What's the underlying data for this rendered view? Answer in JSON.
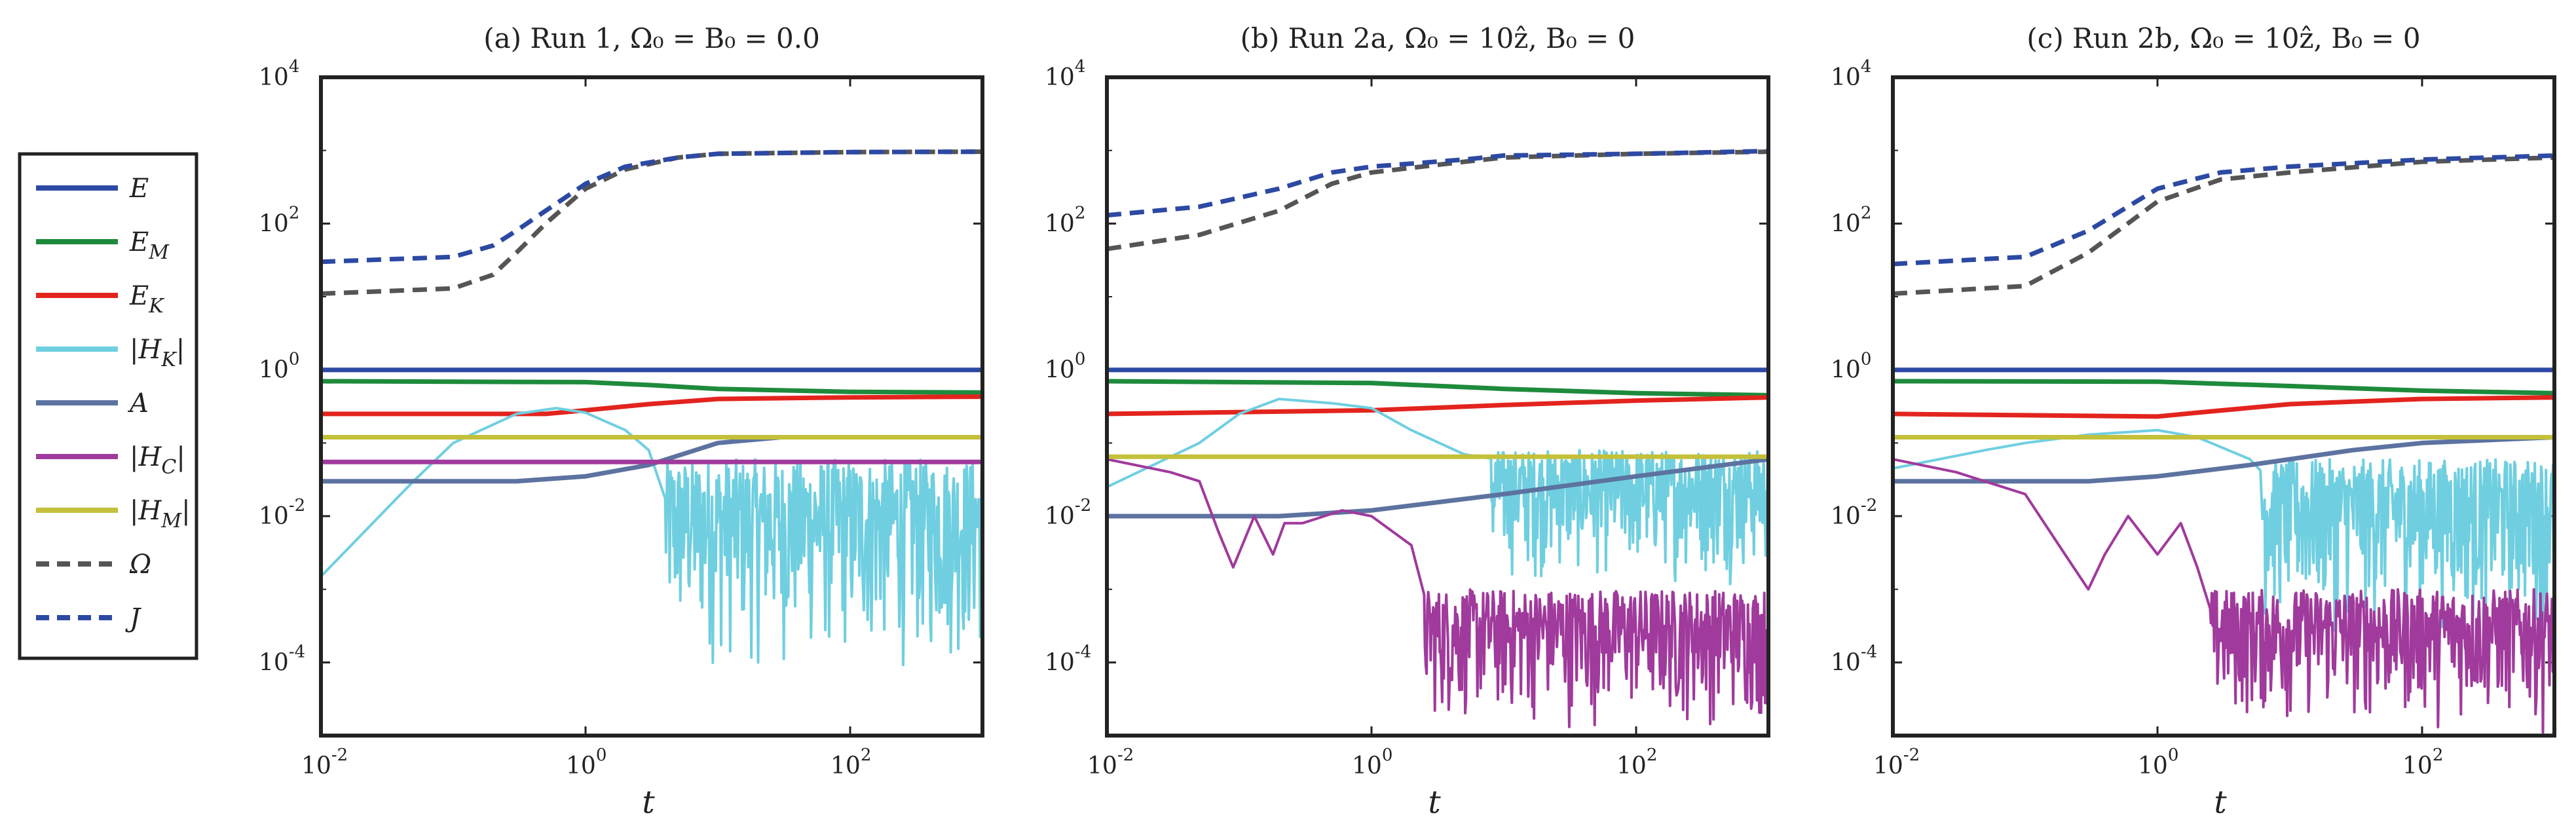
{
  "chart_data": [
    {
      "type": "line",
      "title": "(a) Run 1, Ω₀ = B₀ = 0.0",
      "xlabel": "t",
      "ylabel": "",
      "xscale": "log",
      "yscale": "log",
      "xlim": [
        0.01,
        1000
      ],
      "ylim": [
        1e-05,
        10000
      ],
      "series": [
        {
          "key": "E",
          "points": [
            [
              0.01,
              1.0
            ],
            [
              1000,
              1.0
            ]
          ]
        },
        {
          "key": "EM",
          "points": [
            [
              0.01,
              0.7
            ],
            [
              1,
              0.68
            ],
            [
              3,
              0.62
            ],
            [
              10,
              0.55
            ],
            [
              100,
              0.5
            ],
            [
              1000,
              0.49
            ]
          ]
        },
        {
          "key": "EK",
          "points": [
            [
              0.01,
              0.25
            ],
            [
              0.5,
              0.25
            ],
            [
              1,
              0.28
            ],
            [
              3,
              0.34
            ],
            [
              10,
              0.4
            ],
            [
              100,
              0.42
            ],
            [
              1000,
              0.43
            ]
          ]
        },
        {
          "key": "HK",
          "noisy": true,
          "points": [
            [
              0.01,
              0.0015
            ],
            [
              0.05,
              0.03
            ],
            [
              0.1,
              0.1
            ],
            [
              0.3,
              0.25
            ],
            [
              0.6,
              0.3
            ],
            [
              1,
              0.26
            ],
            [
              2,
              0.15
            ],
            [
              3,
              0.08
            ],
            [
              5,
              0.04
            ],
            [
              8,
              0.015
            ],
            [
              20,
              0.01
            ],
            [
              100,
              0.01
            ],
            [
              1000,
              0.008
            ]
          ],
          "noise": {
            "from": 4,
            "floor": 5e-05,
            "ceil": 0.06
          }
        },
        {
          "key": "A",
          "points": [
            [
              0.01,
              0.03
            ],
            [
              0.3,
              0.03
            ],
            [
              1,
              0.035
            ],
            [
              3,
              0.05
            ],
            [
              10,
              0.1
            ],
            [
              30,
              0.12
            ],
            [
              1000,
              0.12
            ]
          ]
        },
        {
          "key": "HC",
          "points": [
            [
              0.01,
              0.055
            ],
            [
              1000,
              0.055
            ]
          ]
        },
        {
          "key": "HM",
          "points": [
            [
              0.01,
              0.12
            ],
            [
              1000,
              0.12
            ]
          ]
        },
        {
          "key": "Omega",
          "points": [
            [
              0.01,
              11
            ],
            [
              0.1,
              13
            ],
            [
              0.2,
              20
            ],
            [
              0.3,
              40
            ],
            [
              0.5,
              100
            ],
            [
              1,
              300
            ],
            [
              2,
              550
            ],
            [
              5,
              800
            ],
            [
              10,
              900
            ],
            [
              100,
              950
            ],
            [
              1000,
              960
            ]
          ]
        },
        {
          "key": "J",
          "points": [
            [
              0.01,
              30
            ],
            [
              0.1,
              35
            ],
            [
              0.2,
              50
            ],
            [
              0.3,
              80
            ],
            [
              0.5,
              150
            ],
            [
              1,
              350
            ],
            [
              2,
              600
            ],
            [
              5,
              800
            ],
            [
              10,
              900
            ],
            [
              100,
              950
            ],
            [
              1000,
              960
            ]
          ]
        }
      ]
    },
    {
      "type": "line",
      "title": "(b) Run 2a, Ω₀ = 10ẑ, B₀ = 0",
      "xlabel": "t",
      "ylabel": "",
      "xscale": "log",
      "yscale": "log",
      "xlim": [
        0.01,
        1000
      ],
      "ylim": [
        1e-05,
        10000
      ],
      "series": [
        {
          "key": "E",
          "points": [
            [
              0.01,
              1.0
            ],
            [
              1000,
              1.0
            ]
          ]
        },
        {
          "key": "EM",
          "points": [
            [
              0.01,
              0.7
            ],
            [
              1,
              0.66
            ],
            [
              10,
              0.55
            ],
            [
              100,
              0.48
            ],
            [
              1000,
              0.45
            ]
          ]
        },
        {
          "key": "EK",
          "points": [
            [
              0.01,
              0.25
            ],
            [
              1,
              0.28
            ],
            [
              10,
              0.33
            ],
            [
              100,
              0.38
            ],
            [
              1000,
              0.42
            ]
          ]
        },
        {
          "key": "HK",
          "noisy": true,
          "points": [
            [
              0.01,
              0.025
            ],
            [
              0.05,
              0.1
            ],
            [
              0.1,
              0.25
            ],
            [
              0.2,
              0.4
            ],
            [
              0.5,
              0.35
            ],
            [
              1,
              0.3
            ],
            [
              2,
              0.15
            ],
            [
              5,
              0.07
            ],
            [
              10,
              0.02
            ],
            [
              30,
              0.02
            ],
            [
              100,
              0.03
            ],
            [
              1000,
              0.04
            ]
          ],
          "noise": {
            "from": 8,
            "floor": 0.001,
            "ceil": 0.08
          }
        },
        {
          "key": "A",
          "points": [
            [
              0.01,
              0.01
            ],
            [
              0.2,
              0.01
            ],
            [
              1,
              0.012
            ],
            [
              10,
              0.02
            ],
            [
              100,
              0.035
            ],
            [
              1000,
              0.06
            ]
          ]
        },
        {
          "key": "HC",
          "noisy": true,
          "points": [
            [
              0.01,
              0.06
            ],
            [
              0.03,
              0.04
            ],
            [
              0.05,
              0.03
            ],
            [
              0.07,
              0.006
            ],
            [
              0.09,
              0.002
            ],
            [
              0.13,
              0.01
            ],
            [
              0.18,
              0.003
            ],
            [
              0.22,
              0.008
            ],
            [
              0.3,
              0.008
            ],
            [
              0.6,
              0.012
            ],
            [
              1,
              0.01
            ],
            [
              2,
              0.004
            ],
            [
              3,
              0.001
            ],
            [
              1000,
              0.0008
            ]
          ],
          "noise": {
            "from": 2.5,
            "floor": 1e-05,
            "ceil": 0.001
          }
        },
        {
          "key": "HM",
          "points": [
            [
              0.01,
              0.065
            ],
            [
              1000,
              0.065
            ]
          ]
        },
        {
          "key": "Omega",
          "points": [
            [
              0.01,
              45
            ],
            [
              0.05,
              70
            ],
            [
              0.2,
              150
            ],
            [
              0.5,
              350
            ],
            [
              1,
              500
            ],
            [
              5,
              700
            ],
            [
              10,
              800
            ],
            [
              100,
              900
            ],
            [
              1000,
              960
            ]
          ]
        },
        {
          "key": "J",
          "points": [
            [
              0.01,
              130
            ],
            [
              0.05,
              170
            ],
            [
              0.2,
              300
            ],
            [
              0.5,
              500
            ],
            [
              1,
              600
            ],
            [
              5,
              750
            ],
            [
              10,
              850
            ],
            [
              100,
              900
            ],
            [
              1000,
              980
            ]
          ]
        }
      ]
    },
    {
      "type": "line",
      "title": "(c) Run 2b, Ω₀ = 10ẑ, B₀ = 0",
      "xlabel": "t",
      "ylabel": "",
      "xscale": "log",
      "yscale": "log",
      "xlim": [
        0.01,
        1000
      ],
      "ylim": [
        1e-05,
        10000
      ],
      "series": [
        {
          "key": "E",
          "points": [
            [
              0.01,
              1.0
            ],
            [
              1000,
              1.0
            ]
          ]
        },
        {
          "key": "EM",
          "points": [
            [
              0.01,
              0.7
            ],
            [
              1,
              0.69
            ],
            [
              10,
              0.6
            ],
            [
              100,
              0.52
            ],
            [
              1000,
              0.48
            ]
          ]
        },
        {
          "key": "EK",
          "points": [
            [
              0.01,
              0.25
            ],
            [
              1,
              0.23
            ],
            [
              2,
              0.26
            ],
            [
              10,
              0.34
            ],
            [
              100,
              0.4
            ],
            [
              1000,
              0.42
            ]
          ]
        },
        {
          "key": "HK",
          "noisy": true,
          "points": [
            [
              0.01,
              0.045
            ],
            [
              0.05,
              0.08
            ],
            [
              0.1,
              0.1
            ],
            [
              0.3,
              0.13
            ],
            [
              1,
              0.15
            ],
            [
              2,
              0.12
            ],
            [
              5,
              0.06
            ],
            [
              10,
              0.02
            ],
            [
              30,
              0.01
            ],
            [
              100,
              0.02
            ],
            [
              1000,
              0.04
            ]
          ],
          "noise": {
            "from": 6,
            "floor": 0.0002,
            "ceil": 0.06
          }
        },
        {
          "key": "A",
          "points": [
            [
              0.01,
              0.03
            ],
            [
              0.3,
              0.03
            ],
            [
              1,
              0.035
            ],
            [
              5,
              0.05
            ],
            [
              10,
              0.06
            ],
            [
              30,
              0.08
            ],
            [
              100,
              0.1
            ],
            [
              1000,
              0.12
            ]
          ]
        },
        {
          "key": "HC",
          "noisy": true,
          "points": [
            [
              0.01,
              0.06
            ],
            [
              0.03,
              0.04
            ],
            [
              0.1,
              0.02
            ],
            [
              0.2,
              0.003
            ],
            [
              0.3,
              0.001
            ],
            [
              0.4,
              0.003
            ],
            [
              0.6,
              0.01
            ],
            [
              1,
              0.003
            ],
            [
              1.5,
              0.008
            ],
            [
              2,
              0.002
            ],
            [
              3,
              0.0008
            ],
            [
              1000,
              0.0006
            ]
          ],
          "noise": {
            "from": 2.5,
            "floor": 1e-05,
            "ceil": 0.001
          }
        },
        {
          "key": "HM",
          "points": [
            [
              0.01,
              0.12
            ],
            [
              1000,
              0.12
            ]
          ]
        },
        {
          "key": "Omega",
          "points": [
            [
              0.01,
              11
            ],
            [
              0.1,
              14
            ],
            [
              0.3,
              40
            ],
            [
              1,
              200
            ],
            [
              3,
              400
            ],
            [
              10,
              500
            ],
            [
              100,
              700
            ],
            [
              1000,
              800
            ]
          ]
        },
        {
          "key": "J",
          "points": [
            [
              0.01,
              28
            ],
            [
              0.1,
              35
            ],
            [
              0.3,
              80
            ],
            [
              1,
              300
            ],
            [
              3,
              500
            ],
            [
              10,
              600
            ],
            [
              100,
              750
            ],
            [
              1000,
              850
            ]
          ]
        }
      ]
    }
  ],
  "legend": [
    {
      "key": "E",
      "label": "E",
      "sub": "",
      "abs": false,
      "color": "#2c49a3",
      "dash": false
    },
    {
      "key": "EM",
      "label": "E",
      "sub": "M",
      "abs": false,
      "color": "#1e8a3c",
      "dash": false
    },
    {
      "key": "EK",
      "label": "E",
      "sub": "K",
      "abs": false,
      "color": "#e3241e",
      "dash": false
    },
    {
      "key": "HK",
      "label": "H",
      "sub": "K",
      "abs": true,
      "color": "#6fcfe0",
      "dash": false
    },
    {
      "key": "A",
      "label": "A",
      "sub": "",
      "abs": false,
      "color": "#5c73a0",
      "dash": false
    },
    {
      "key": "HC",
      "label": "H",
      "sub": "C",
      "abs": true,
      "color": "#a03a9c",
      "dash": false
    },
    {
      "key": "HM",
      "label": "H",
      "sub": "M",
      "abs": true,
      "color": "#c4c03a",
      "dash": false
    },
    {
      "key": "Omega",
      "label": "Ω",
      "sub": "",
      "abs": false,
      "color": "#555555",
      "dash": true
    },
    {
      "key": "J",
      "label": "J",
      "sub": "",
      "abs": false,
      "color": "#2c49a3",
      "dash": true
    }
  ]
}
